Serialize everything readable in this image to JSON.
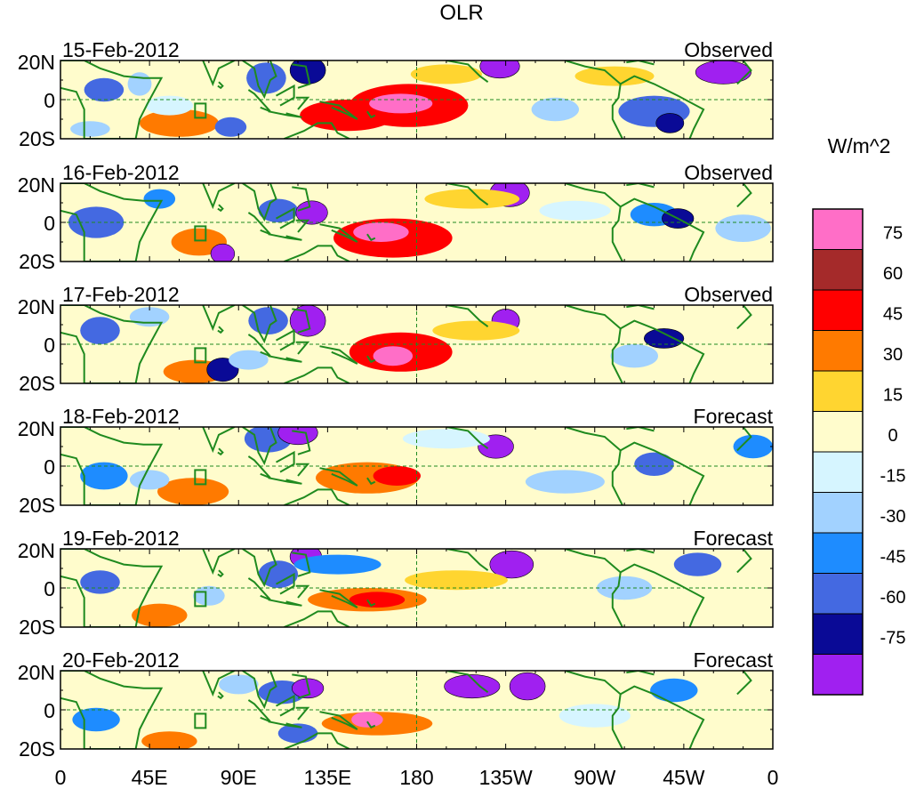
{
  "chart_data": {
    "type": "heatmap",
    "title": "OLR",
    "units_label": "W/m^2",
    "x_ticks": [
      "0",
      "45E",
      "90E",
      "135E",
      "180",
      "135W",
      "90W",
      "45W",
      "0"
    ],
    "y_ticks": [
      "20N",
      "0",
      "20S"
    ],
    "xlim": [
      0,
      360
    ],
    "ylim": [
      -20,
      20
    ],
    "panels": [
      {
        "date": "15-Feb-2012",
        "status": "Observed"
      },
      {
        "date": "16-Feb-2012",
        "status": "Observed"
      },
      {
        "date": "17-Feb-2012",
        "status": "Observed"
      },
      {
        "date": "18-Feb-2012",
        "status": "Forecast"
      },
      {
        "date": "19-Feb-2012",
        "status": "Forecast"
      },
      {
        "date": "20-Feb-2012",
        "status": "Forecast"
      }
    ],
    "colorbar": {
      "levels": [
        "75",
        "60",
        "45",
        "30",
        "15",
        "0",
        "-15",
        "-30",
        "-45",
        "-60",
        "-75"
      ],
      "colors": [
        "#ff6ec7",
        "#a52a2a",
        "#ff0000",
        "#ff7a00",
        "#ffd530",
        "#fffccc",
        "#d6f5ff",
        "#a2d2ff",
        "#1e8cff",
        "#4469e1",
        "#0a0a96",
        "#a020f0"
      ]
    },
    "style": {
      "land_outline": "#1f8a1f",
      "equator_line": "#1f8a1f"
    }
  }
}
